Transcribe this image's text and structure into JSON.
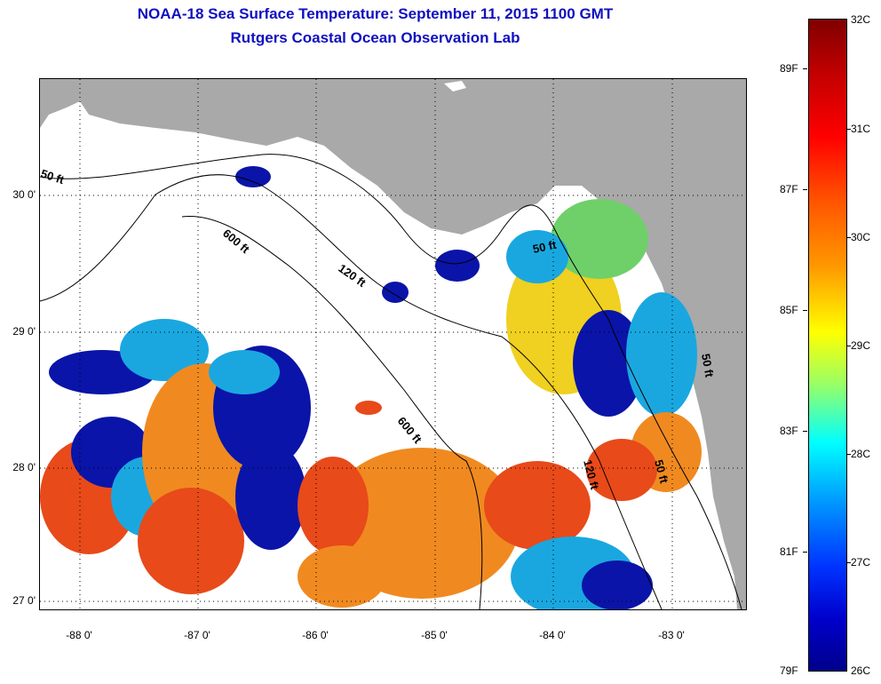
{
  "header": {
    "title": "NOAA-18 Sea Surface Temperature:  September 11, 2015 1100 GMT",
    "subtitle": "Rutgers Coastal Ocean Observation Lab"
  },
  "map": {
    "lat_labels": [
      "30 0'",
      "29 0'",
      "28 0'",
      "27 0'"
    ],
    "lon_labels": [
      "-88 0'",
      "-87 0'",
      "-86 0'",
      "-85 0'",
      "-84 0'",
      "-83 0'"
    ],
    "depth_labels": {
      "d50a": "50 ft",
      "d50b": "50 ft",
      "d50c": "50 ft",
      "d50d": "50 ft",
      "d120a": "120 ft",
      "d120b": "120 ft",
      "d600a": "600 ft",
      "d600b": "600 ft"
    }
  },
  "colorbar": {
    "fahrenheit": [
      "89F",
      "87F",
      "85F",
      "83F",
      "81F",
      "79F"
    ],
    "celsius": [
      "32C",
      "31C",
      "30C",
      "29C",
      "28C",
      "27C",
      "26C"
    ],
    "colors": {
      "max": "#800000",
      "mid": "#ffff00",
      "min": "#00008b"
    }
  },
  "colors": {
    "land": "#a9a9a9",
    "title": "#1010c0",
    "warm": "#f08a20",
    "hot": "#e84a1a",
    "cool": "#1aa7e0",
    "cold": "#0a14a8",
    "green": "#6fd06a"
  }
}
